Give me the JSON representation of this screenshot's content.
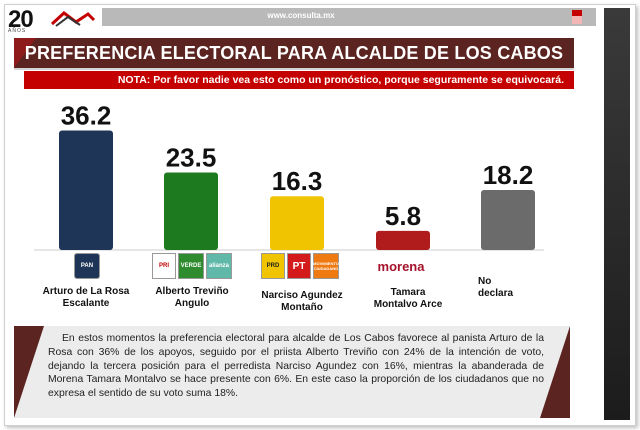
{
  "header": {
    "logo_number": "20",
    "logo_subtitle": "AÑOS",
    "url": "www.consulta.mx"
  },
  "title": "PREFERENCIA ELECTORAL PARA ALCALDE DE LOS CABOS",
  "note": "NOTA: Por favor nadie vea esto como un pronóstico, porque seguramente se equivocará.",
  "colors": {
    "title_band": "#5b2420",
    "note_band": "#c40000",
    "pan": "#1f3557",
    "pri": "#1e7a1e",
    "prd": "#f0c400",
    "morena": "#b01c1c",
    "no_declara": "#6b6b6b"
  },
  "parties": {
    "pan": "PAN",
    "pri": "PRI",
    "verde": "VERDE",
    "alianza": "alianza",
    "prd": "PRD",
    "pt": "PT",
    "mc": "MOVIMIENTO CIUDADANO",
    "morena": "morena"
  },
  "chart_data": {
    "type": "bar",
    "title": "PREFERENCIA ELECTORAL PARA ALCALDE DE LOS CABOS",
    "categories": [
      "Arturo de La Rosa Escalante",
      "Alberto Treviño Angulo",
      "Narciso Agundez Montaño",
      "Tamara Montalvo Arce",
      "No declara"
    ],
    "values": [
      36.2,
      23.5,
      16.3,
      5.8,
      18.2
    ],
    "value_labels": [
      "36.2",
      "23.5",
      "16.3",
      "5.8",
      "18.2"
    ],
    "bar_colors": [
      "#1f3557",
      "#1e7a1e",
      "#f0c400",
      "#b01c1c",
      "#6b6b6b"
    ],
    "xlabel": "",
    "ylabel": "",
    "ylim": [
      0,
      40
    ],
    "grid": false,
    "legend": "none"
  },
  "labels": {
    "c1_line1": "Arturo de La Rosa",
    "c1_line2": "Escalante",
    "c2_line1": "Alberto Treviño",
    "c2_line2": "Angulo",
    "c3_line1": "Narciso Agundez",
    "c3_line2": "Montaño",
    "c4_line1": "Tamara",
    "c4_line2": "Montalvo  Arce",
    "c5_line1": "No",
    "c5_line2": "declara"
  },
  "summary": "En estos momentos la preferencia electoral para alcalde de Los Cabos favorece al panista Arturo de la Rosa con 36% de los apoyos, seguido por el priista Alberto Treviño con 24% de la intención de voto, dejando la tercera posición para el perredista Narciso Agundez con 16%, mientras la abanderada de Morena Tamara Montalvo se hace presente con 6%. En este caso la proporción de los ciudadanos que no expresa el sentido de su voto suma 18%."
}
